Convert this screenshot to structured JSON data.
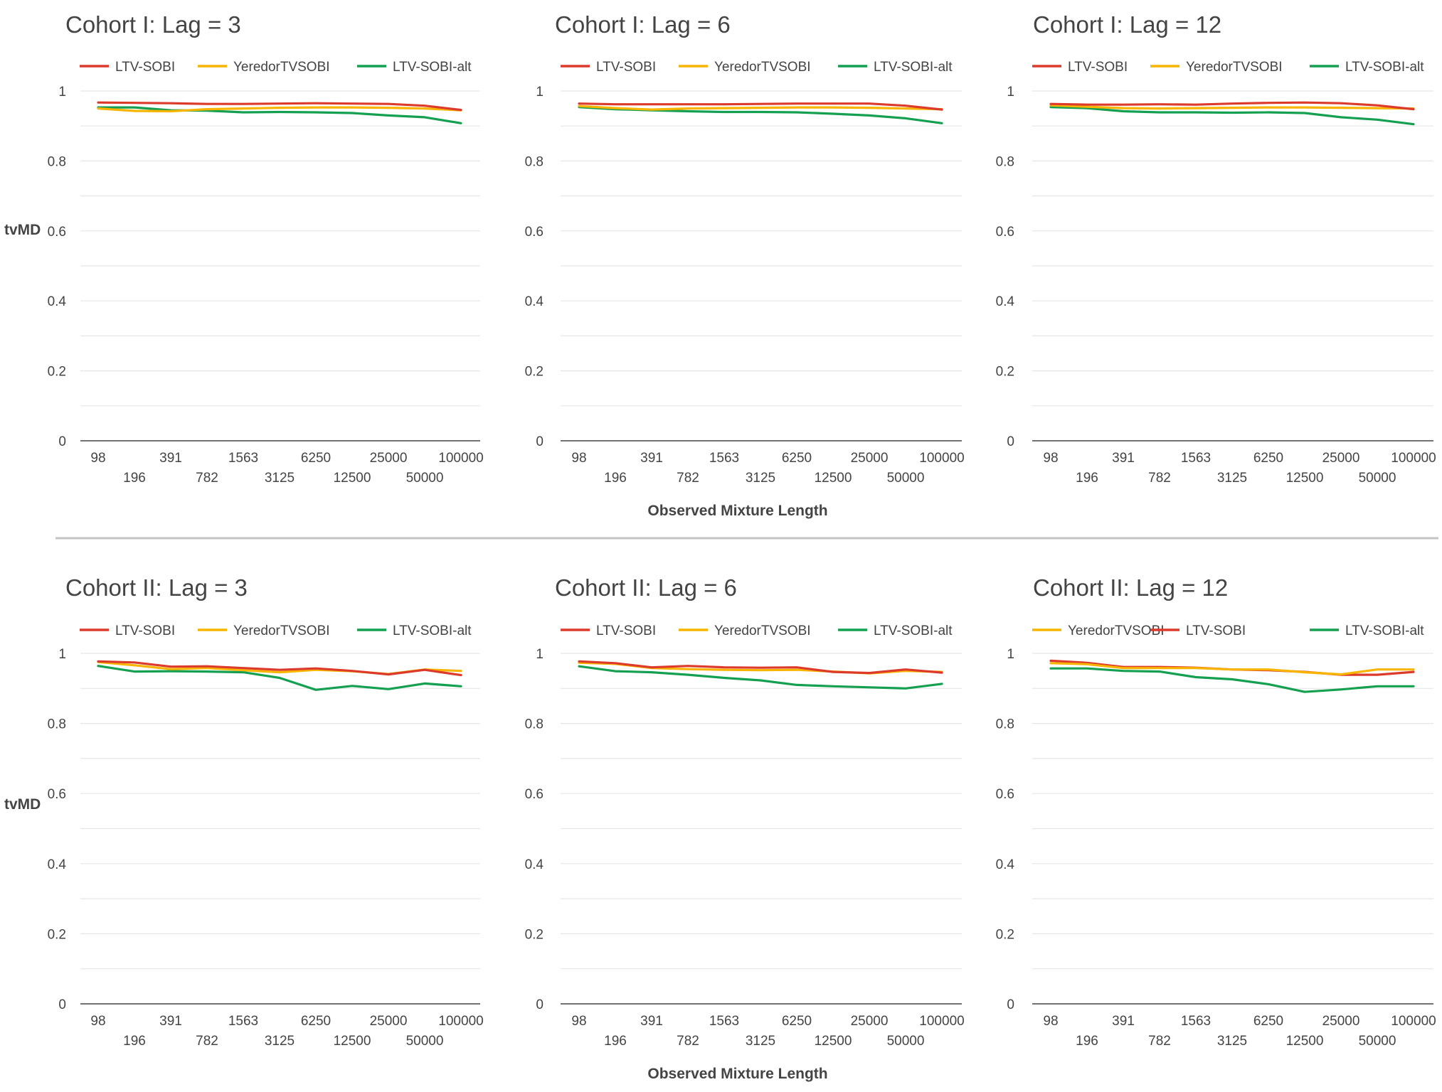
{
  "figure": {
    "ylabel": "tvMD",
    "xlabel": "Observed Mixture Length"
  },
  "colors": {
    "LTV-SOBI": "#dc3a2b",
    "YeredorTVSOBI": "#f7b500",
    "LTV-SOBI-alt": "#14a050"
  },
  "chart_data": [
    {
      "type": "line",
      "title": "Cohort I: Lag = 3",
      "ylim": [
        0,
        1
      ],
      "yticks": [
        "0",
        "0.2",
        "0.4",
        "0.6",
        "0.8",
        "1"
      ],
      "categories": [
        "98",
        "196",
        "391",
        "782",
        "1563",
        "3125",
        "6250",
        "12500",
        "25000",
        "50000",
        "100000"
      ],
      "legend": [
        "LTV-SOBI",
        "YeredorTVSOBI",
        "LTV-SOBI-alt"
      ],
      "legend_position": "top",
      "grid": true,
      "series": [
        {
          "name": "LTV-SOBI",
          "values": [
            0.967,
            0.966,
            0.965,
            0.963,
            0.963,
            0.964,
            0.965,
            0.964,
            0.963,
            0.958,
            0.946
          ]
        },
        {
          "name": "YeredorTVSOBI",
          "values": [
            0.95,
            0.943,
            0.942,
            0.948,
            0.95,
            0.952,
            0.953,
            0.953,
            0.952,
            0.95,
            0.945
          ]
        },
        {
          "name": "LTV-SOBI-alt",
          "values": [
            0.953,
            0.953,
            0.945,
            0.944,
            0.939,
            0.94,
            0.939,
            0.937,
            0.93,
            0.925,
            0.908
          ]
        }
      ]
    },
    {
      "type": "line",
      "title": "Cohort I: Lag = 6",
      "ylim": [
        0,
        1
      ],
      "yticks": [
        "0",
        "0.2",
        "0.4",
        "0.6",
        "0.8",
        "1"
      ],
      "categories": [
        "98",
        "196",
        "391",
        "782",
        "1563",
        "3125",
        "6250",
        "12500",
        "25000",
        "50000",
        "100000"
      ],
      "legend": [
        "LTV-SOBI",
        "YeredorTVSOBI",
        "LTV-SOBI-alt"
      ],
      "legend_position": "top",
      "grid": true,
      "series": [
        {
          "name": "LTV-SOBI",
          "values": [
            0.964,
            0.962,
            0.962,
            0.962,
            0.962,
            0.963,
            0.964,
            0.964,
            0.964,
            0.958,
            0.947
          ]
        },
        {
          "name": "YeredorTVSOBI",
          "values": [
            0.957,
            0.951,
            0.947,
            0.95,
            0.951,
            0.952,
            0.953,
            0.953,
            0.952,
            0.95,
            0.948
          ]
        },
        {
          "name": "LTV-SOBI-alt",
          "values": [
            0.954,
            0.948,
            0.945,
            0.942,
            0.94,
            0.94,
            0.939,
            0.935,
            0.93,
            0.922,
            0.908
          ]
        }
      ]
    },
    {
      "type": "line",
      "title": "Cohort I: Lag = 12",
      "ylim": [
        0,
        1
      ],
      "yticks": [
        "0",
        "0.2",
        "0.4",
        "0.6",
        "0.8",
        "1"
      ],
      "categories": [
        "98",
        "196",
        "391",
        "782",
        "1563",
        "3125",
        "6250",
        "12500",
        "25000",
        "50000",
        "100000"
      ],
      "legend": [
        "LTV-SOBI",
        "YeredorTVSOBI",
        "LTV-SOBI-alt"
      ],
      "legend_position": "top",
      "grid": true,
      "series": [
        {
          "name": "LTV-SOBI",
          "values": [
            0.963,
            0.961,
            0.961,
            0.962,
            0.961,
            0.964,
            0.966,
            0.967,
            0.965,
            0.959,
            0.948
          ]
        },
        {
          "name": "YeredorTVSOBI",
          "values": [
            0.959,
            0.955,
            0.951,
            0.95,
            0.951,
            0.952,
            0.953,
            0.953,
            0.952,
            0.951,
            0.95
          ]
        },
        {
          "name": "LTV-SOBI-alt",
          "values": [
            0.954,
            0.951,
            0.942,
            0.939,
            0.939,
            0.938,
            0.939,
            0.937,
            0.925,
            0.918,
            0.905
          ]
        }
      ]
    },
    {
      "type": "line",
      "title": "Cohort II: Lag = 3",
      "ylim": [
        0,
        1
      ],
      "yticks": [
        "0",
        "0.2",
        "0.4",
        "0.6",
        "0.8",
        "1"
      ],
      "categories": [
        "98",
        "196",
        "391",
        "782",
        "1563",
        "3125",
        "6250",
        "12500",
        "25000",
        "50000",
        "100000"
      ],
      "legend": [
        "LTV-SOBI",
        "YeredorTVSOBI",
        "LTV-SOBI-alt"
      ],
      "legend_position": "top",
      "grid": true,
      "series": [
        {
          "name": "LTV-SOBI",
          "values": [
            0.977,
            0.974,
            0.962,
            0.963,
            0.958,
            0.953,
            0.957,
            0.95,
            0.94,
            0.953,
            0.938
          ]
        },
        {
          "name": "YeredorTVSOBI",
          "values": [
            0.975,
            0.966,
            0.955,
            0.958,
            0.952,
            0.946,
            0.953,
            0.949,
            0.941,
            0.954,
            0.95
          ]
        },
        {
          "name": "LTV-SOBI-alt",
          "values": [
            0.964,
            0.948,
            0.949,
            0.948,
            0.946,
            0.93,
            0.896,
            0.907,
            0.898,
            0.914,
            0.906
          ]
        }
      ]
    },
    {
      "type": "line",
      "title": "Cohort II: Lag = 6",
      "ylim": [
        0,
        1
      ],
      "yticks": [
        "0",
        "0.2",
        "0.4",
        "0.6",
        "0.8",
        "1"
      ],
      "categories": [
        "98",
        "196",
        "391",
        "782",
        "1563",
        "3125",
        "6250",
        "12500",
        "25000",
        "50000",
        "100000"
      ],
      "legend": [
        "LTV-SOBI",
        "YeredorTVSOBI",
        "LTV-SOBI-alt"
      ],
      "legend_position": "top",
      "grid": true,
      "series": [
        {
          "name": "LTV-SOBI",
          "values": [
            0.977,
            0.972,
            0.96,
            0.964,
            0.96,
            0.959,
            0.96,
            0.947,
            0.944,
            0.954,
            0.945
          ]
        },
        {
          "name": "YeredorTVSOBI",
          "values": [
            0.973,
            0.97,
            0.958,
            0.955,
            0.953,
            0.952,
            0.953,
            0.948,
            0.943,
            0.95,
            0.947
          ]
        },
        {
          "name": "LTV-SOBI-alt",
          "values": [
            0.963,
            0.949,
            0.946,
            0.939,
            0.93,
            0.923,
            0.91,
            0.906,
            0.903,
            0.9,
            0.913
          ]
        }
      ]
    },
    {
      "type": "line",
      "title": "Cohort II: Lag = 12",
      "ylim": [
        0,
        1
      ],
      "yticks": [
        "0",
        "0.2",
        "0.4",
        "0.6",
        "0.8",
        "1"
      ],
      "categories": [
        "98",
        "196",
        "391",
        "782",
        "1563",
        "3125",
        "6250",
        "12500",
        "25000",
        "50000",
        "100000"
      ],
      "legend": [
        "YeredorTVSOBI",
        "LTV-SOBI",
        "LTV-SOBI-alt"
      ],
      "legend_position": "top",
      "grid": true,
      "series": [
        {
          "name": "YeredorTVSOBI",
          "values": [
            0.972,
            0.969,
            0.958,
            0.958,
            0.958,
            0.954,
            0.954,
            0.946,
            0.94,
            0.954,
            0.954
          ]
        },
        {
          "name": "LTV-SOBI",
          "values": [
            0.979,
            0.973,
            0.961,
            0.961,
            0.959,
            0.954,
            0.952,
            0.947,
            0.939,
            0.939,
            0.947
          ]
        },
        {
          "name": "LTV-SOBI-alt",
          "values": [
            0.957,
            0.957,
            0.95,
            0.948,
            0.932,
            0.926,
            0.912,
            0.89,
            0.897,
            0.906,
            0.906
          ]
        }
      ]
    }
  ]
}
